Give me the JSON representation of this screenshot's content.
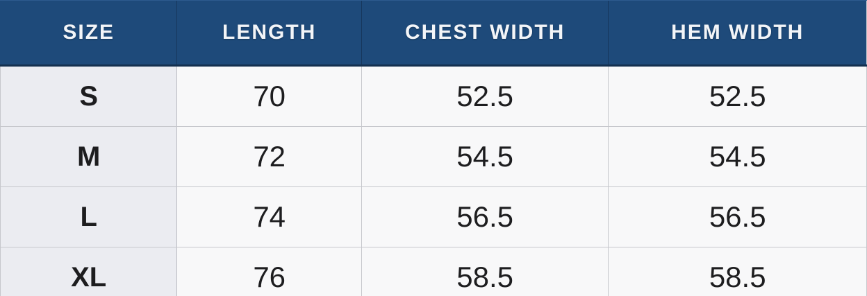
{
  "colors": {
    "header_bg": "#1e4a7a",
    "header_edge": "#14304f",
    "header_text": "#f3f5f8",
    "label_col_bg": "#ebecf1",
    "cell_bg": "#f8f8f9",
    "grid_border": "#c6c7cc",
    "body_text": "#1d1d1f"
  },
  "table": {
    "headers": [
      "SIZE",
      "LENGTH",
      "CHEST WIDTH",
      "HEM WIDTH"
    ],
    "rows": [
      [
        "S",
        "70",
        "52.5",
        "52.5"
      ],
      [
        "M",
        "72",
        "54.5",
        "54.5"
      ],
      [
        "L",
        "74",
        "56.5",
        "56.5"
      ],
      [
        "XL",
        "76",
        "58.5",
        "58.5"
      ]
    ]
  },
  "chart_data": {
    "type": "table",
    "columns": [
      "SIZE",
      "LENGTH",
      "CHEST WIDTH",
      "HEM WIDTH"
    ],
    "rows": [
      [
        "S",
        70,
        52.5,
        52.5
      ],
      [
        "M",
        72,
        54.5,
        54.5
      ],
      [
        "L",
        74,
        56.5,
        56.5
      ],
      [
        "XL",
        76,
        58.5,
        58.5
      ]
    ]
  }
}
